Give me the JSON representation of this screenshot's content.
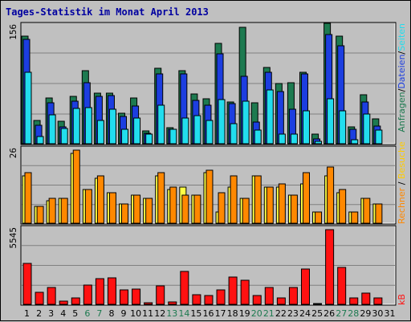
{
  "title": "Tages-Statistik im Monat April 2013",
  "colors": {
    "background": "#c0c0c0",
    "plot": "#c0c0c0",
    "title": "#0000a0",
    "anfragen": "#1d7a50",
    "dateien": "#1c3ee0",
    "seiten": "#22ddee",
    "besuche": "#ff8800",
    "rechner": "#ffff44",
    "kb": "#ff1111",
    "weekend_label": "#1d7a50",
    "weekday_label": "#000000"
  },
  "chart_data": [
    {
      "type": "bar",
      "name": "hits-files-pages",
      "categories": [
        "1",
        "2",
        "3",
        "4",
        "5",
        "6",
        "7",
        "8",
        "9",
        "10",
        "11",
        "12",
        "13",
        "14",
        "15",
        "16",
        "17",
        "18",
        "19",
        "20",
        "21",
        "22",
        "23",
        "24",
        "25",
        "26",
        "27",
        "28",
        "29",
        "30",
        "31"
      ],
      "ymax_label": "156",
      "ylim": [
        0,
        156
      ],
      "legend": [
        "Anfragen",
        "Dateien",
        "Seiten"
      ],
      "series": [
        {
          "name": "Anfragen",
          "values": [
            139,
            30,
            59,
            29,
            61,
            95,
            66,
            66,
            40,
            59,
            17,
            98,
            21,
            95,
            65,
            58,
            130,
            54,
            151,
            53,
            99,
            78,
            79,
            93,
            12,
            156,
            139,
            22,
            63,
            32,
            0
          ]
        },
        {
          "name": "Dateien",
          "values": [
            135,
            24,
            53,
            22,
            55,
            79,
            61,
            62,
            35,
            49,
            14,
            91,
            19,
            91,
            56,
            50,
            117,
            52,
            87,
            28,
            93,
            68,
            45,
            91,
            6,
            141,
            127,
            19,
            54,
            23,
            0
          ]
        },
        {
          "name": "Seiten",
          "values": [
            93,
            9,
            37,
            20,
            46,
            47,
            30,
            45,
            19,
            33,
            12,
            50,
            19,
            33,
            36,
            30,
            57,
            26,
            55,
            18,
            70,
            13,
            13,
            43,
            3,
            58,
            43,
            5,
            38,
            18,
            0
          ]
        }
      ]
    },
    {
      "type": "bar",
      "name": "visits-hosts",
      "categories": [
        "1",
        "2",
        "3",
        "4",
        "5",
        "6",
        "7",
        "8",
        "9",
        "10",
        "11",
        "12",
        "13",
        "14",
        "15",
        "16",
        "17",
        "18",
        "19",
        "20",
        "21",
        "22",
        "23",
        "24",
        "25",
        "26",
        "27",
        "28",
        "29",
        "30",
        "31"
      ],
      "ymax_label": "26",
      "ylim": [
        0,
        26
      ],
      "legend": [
        "Rechner",
        "Besuche"
      ],
      "series": [
        {
          "name": "Besuche",
          "values": [
            18,
            6,
            9,
            9,
            26,
            12,
            17,
            11,
            7,
            10,
            9,
            18,
            13,
            10,
            10,
            19,
            11,
            17,
            9,
            17,
            13,
            14,
            10,
            18,
            4,
            20,
            12,
            4,
            9,
            7,
            0
          ]
        },
        {
          "name": "Rechner",
          "values": [
            17,
            6,
            8,
            9,
            25,
            12,
            16,
            11,
            7,
            10,
            9,
            17,
            12,
            13,
            10,
            18,
            4,
            13,
            9,
            17,
            13,
            13,
            10,
            14,
            4,
            17,
            11,
            4,
            9,
            7,
            0
          ]
        }
      ]
    },
    {
      "type": "bar",
      "name": "kbytes",
      "categories": [
        "1",
        "2",
        "3",
        "4",
        "5",
        "6",
        "7",
        "8",
        "9",
        "10",
        "11",
        "12",
        "13",
        "14",
        "15",
        "16",
        "17",
        "18",
        "19",
        "20",
        "21",
        "22",
        "23",
        "24",
        "25",
        "26",
        "27",
        "28",
        "29",
        "30",
        "31"
      ],
      "ymax_label": "5545",
      "ylim": [
        0,
        5545
      ],
      "legend": [
        "kB"
      ],
      "series": [
        {
          "name": "kB",
          "values": [
            3030,
            898,
            1270,
            237,
            466,
            1460,
            1880,
            1970,
            1080,
            1120,
            108,
            1390,
            160,
            2460,
            728,
            666,
            1050,
            2050,
            1780,
            682,
            1270,
            463,
            1270,
            2600,
            74,
            5545,
            2770,
            461,
            806,
            462,
            0
          ]
        }
      ]
    }
  ],
  "weekend_days": [
    6,
    7,
    13,
    14,
    20,
    21,
    27,
    28
  ],
  "sidebar_labels": {
    "top": [
      "Anfragen",
      "Dateien",
      "Seiten"
    ],
    "middle": [
      "Besuche",
      "Rechner"
    ],
    "bottom": [
      "kB"
    ],
    "separator": "/"
  }
}
